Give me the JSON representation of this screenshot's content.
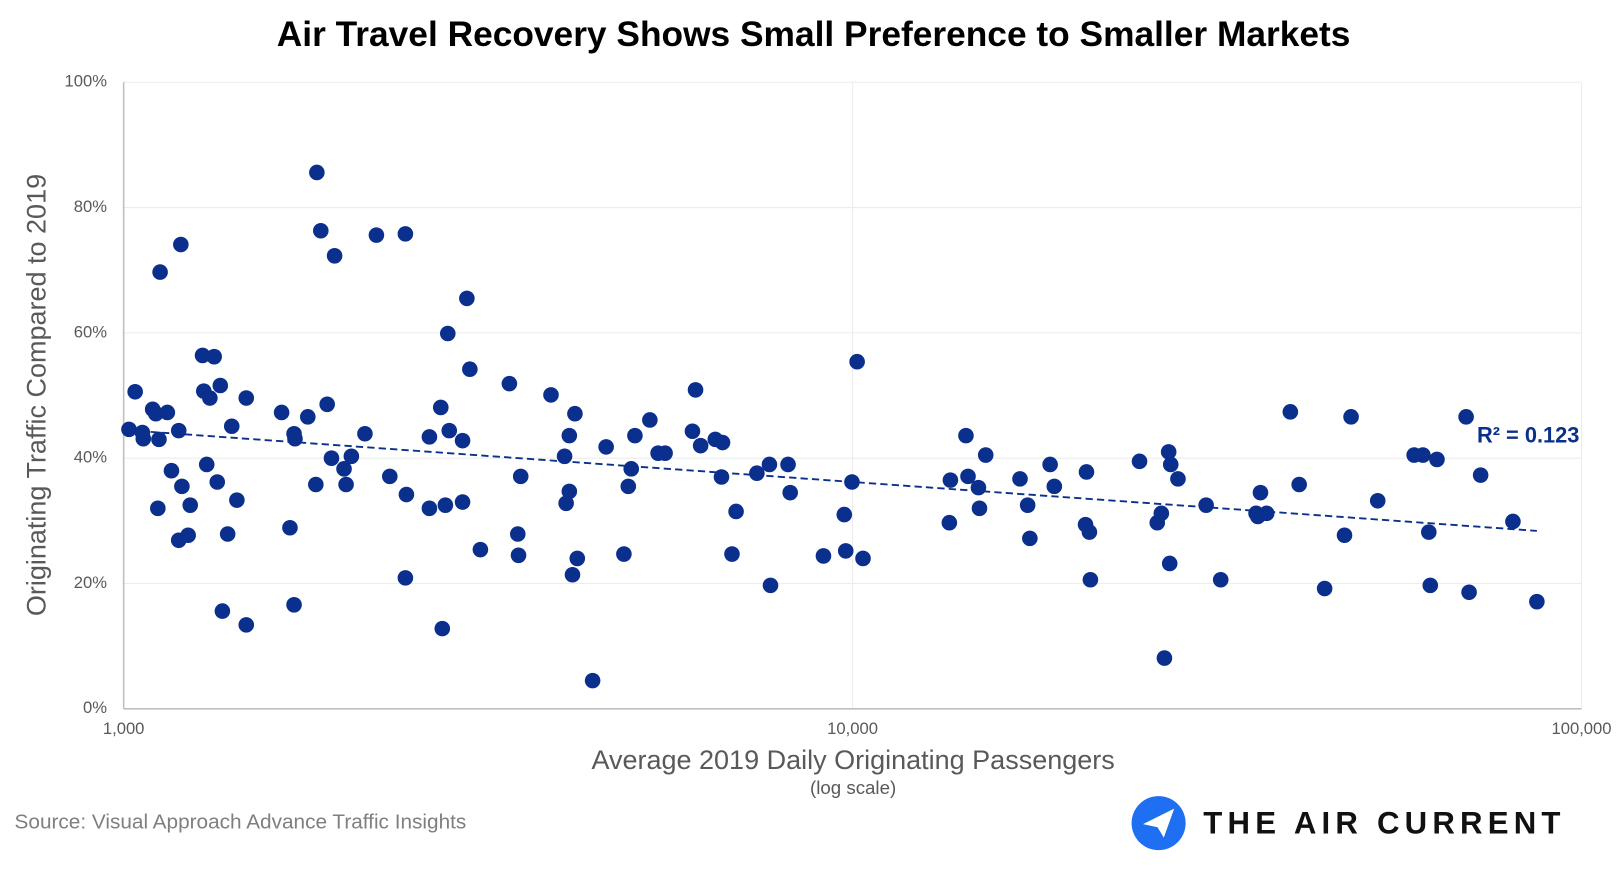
{
  "chart_data": {
    "type": "scatter",
    "title": "Air Travel Recovery Shows Small Preference to Smaller Markets",
    "x_label": "Average 2019 Daily Originating Passengers",
    "x_sublabel": "(log scale)",
    "y_label": "Originating Traffic Compared to 2019",
    "source": "Source: Visual Approach Advance Traffic Insights",
    "brand": "THE AIR CURRENT",
    "annotation": "R² = 0.123",
    "color": "#0a2f8c",
    "trend_color": "#0a2f8c",
    "x_log": true,
    "grid": true,
    "xlim": [
      1000,
      100000
    ],
    "xticks": [
      {
        "value": 1000,
        "label": "1,000"
      },
      {
        "value": 10000,
        "label": "10,000"
      },
      {
        "value": 100000,
        "label": "100,000"
      }
    ],
    "ylim": [
      0,
      100
    ],
    "yticks": [
      {
        "value": 0,
        "label": "0%"
      },
      {
        "value": 20,
        "label": "20%"
      },
      {
        "value": 40,
        "label": "40%"
      },
      {
        "value": 60,
        "label": "60%"
      },
      {
        "value": 80,
        "label": "80%"
      },
      {
        "value": 100,
        "label": "100%"
      }
    ],
    "x": [
      1017,
      1037,
      1061,
      1064,
      1096,
      1107,
      1118,
      1114,
      1122,
      1148,
      1163,
      1190,
      1198,
      1202,
      1190,
      1226,
      1234,
      1283,
      1288,
      1300,
      1313,
      1331,
      1344,
      1357,
      1366,
      1389,
      1407,
      1430,
      1473,
      1473,
      1647,
      1691,
      1713,
      1718,
      1713,
      1789,
      1835,
      1841,
      1864,
      1902,
      1928,
      1947,
      2006,
      2019,
      2053,
      2143,
      2222,
      2318,
      2435,
      2443,
      2435,
      2627,
      2627,
      2723,
      2736,
      2763,
      2784,
      2797,
      2917,
      2917,
      2957,
      2985,
      3086,
      3382,
      3473,
      3481,
      3505,
      3857,
      4026,
      4046,
      4087,
      4087,
      4128,
      4160,
      4191,
      4399,
      4591,
      4856,
      4924,
      4970,
      5028,
      5271,
      5410,
      5531,
      6030,
      6089,
      6188,
      6481,
      6631,
      6609,
      6832,
      6921,
      7391,
      7690,
      7716,
      8156,
      8211,
      9121,
      9741,
      9786,
      9980,
      10144,
      10335,
      13575,
      13620,
      14306,
      14400,
      14882,
      14931,
      15228,
      16970,
      17385,
      17506,
      18664,
      18913,
      20873,
      20935,
      21130,
      21196,
      24755,
      26180,
      26520,
      26780,
      27140,
      27230,
      27320,
      27950,
      30550,
      31990,
      35770,
      35970,
      36270,
      36990,
      39860,
      40990,
      44420,
      47300,
      48290,
      52530,
      58940,
      60590,
      61730,
      62020,
      63340,
      69450,
      70110,
      72710,
      80520,
      86850
    ],
    "values": [
      44.6,
      50.6,
      44.1,
      43.1,
      47.8,
      47.1,
      43.0,
      32.0,
      69.7,
      47.3,
      38.0,
      44.4,
      74.1,
      35.5,
      26.9,
      27.7,
      32.5,
      56.4,
      50.7,
      39.0,
      49.6,
      56.2,
      36.2,
      51.6,
      15.6,
      27.9,
      45.1,
      33.3,
      49.6,
      13.4,
      47.3,
      28.9,
      43.9,
      43.1,
      16.6,
      46.6,
      35.8,
      85.6,
      76.3,
      48.6,
      40.0,
      72.3,
      38.3,
      35.8,
      40.3,
      43.9,
      75.6,
      37.1,
      75.8,
      34.2,
      20.9,
      43.4,
      32.0,
      48.1,
      12.8,
      32.5,
      59.9,
      44.4,
      42.8,
      33.0,
      65.5,
      54.2,
      25.4,
      51.9,
      27.9,
      24.5,
      37.1,
      50.1,
      40.3,
      32.8,
      43.6,
      34.7,
      21.4,
      47.1,
      24.0,
      4.5,
      41.8,
      24.7,
      35.5,
      38.3,
      43.6,
      46.1,
      40.8,
      40.8,
      44.3,
      50.9,
      42.0,
      43.0,
      42.5,
      37.0,
      24.7,
      31.5,
      37.6,
      39.0,
      19.7,
      39.0,
      34.5,
      24.4,
      31.0,
      25.2,
      36.2,
      55.4,
      24.0,
      29.7,
      36.5,
      43.6,
      37.1,
      35.3,
      32.0,
      40.5,
      36.7,
      32.5,
      27.2,
      39.0,
      35.5,
      29.4,
      37.8,
      28.2,
      20.6,
      39.5,
      29.7,
      31.2,
      8.1,
      41.0,
      23.2,
      39.0,
      36.7,
      32.5,
      20.6,
      31.2,
      30.7,
      34.5,
      31.2,
      47.4,
      35.8,
      19.2,
      27.7,
      46.6,
      33.2,
      40.5,
      40.5,
      28.2,
      19.7,
      39.8,
      46.6,
      18.6,
      37.3,
      29.9,
      17.1
    ],
    "trendline": {
      "x": [
        1089,
        86850
      ],
      "y": [
        44.2,
        28.4
      ]
    }
  }
}
